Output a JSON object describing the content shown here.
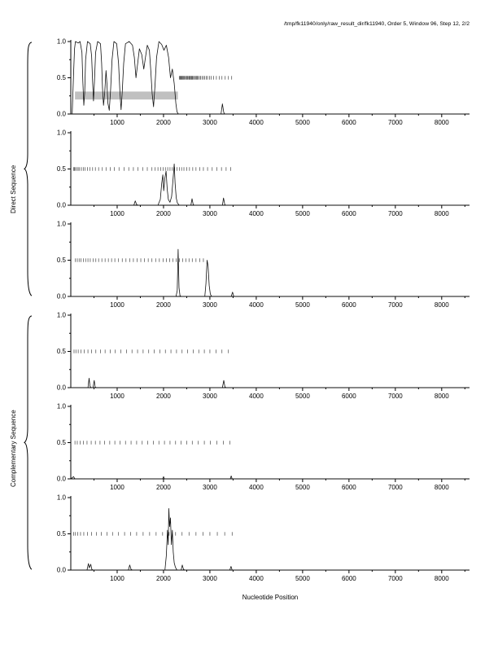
{
  "title": "/tmp/fk11940/only/raw_result_dir/fk11940, Order 5, Window 96, Step 12, 2/2",
  "xlabel": "Nucleotide Position",
  "group_labels": {
    "direct": "Direct Sequence",
    "complementary": "Complementary Sequence"
  },
  "colors": {
    "curve": "#111111",
    "axis": "#000000",
    "marker": "#444444",
    "coding_bar": "#c0c0c0"
  },
  "chart_data": {
    "type": "line",
    "title": "/tmp/fk11940/only/raw_result_dir/fk11940, Order 5, Window 96, Step 12, 2/2",
    "xlabel": "Nucleotide Position",
    "ylabel_groups": [
      "Direct Sequence",
      "Complementary Sequence"
    ],
    "xlim": [
      0,
      8600
    ],
    "ylim": [
      0,
      1
    ],
    "x_ticks": [
      1000,
      2000,
      3000,
      4000,
      5000,
      6000,
      7000,
      8000
    ],
    "x_minor_step": 500,
    "y_ticks": [
      0.0,
      0.5,
      1.0
    ],
    "y_minor_ticks": [
      0.25,
      0.75
    ],
    "grid": false,
    "legend": "none",
    "panels": [
      {
        "name": "direct-frame-1",
        "coding_bar": {
          "x0": 90,
          "x1": 2310,
          "y0": 0.2,
          "y1": 0.31
        },
        "curve": [
          [
            30,
            0.0
          ],
          [
            60,
            0.55
          ],
          [
            80,
            0.9
          ],
          [
            100,
            1.0
          ],
          [
            160,
            0.98
          ],
          [
            200,
            1.0
          ],
          [
            240,
            0.85
          ],
          [
            260,
            0.45
          ],
          [
            280,
            0.12
          ],
          [
            300,
            0.3
          ],
          [
            320,
            0.75
          ],
          [
            360,
            1.0
          ],
          [
            420,
            0.97
          ],
          [
            450,
            0.8
          ],
          [
            470,
            0.45
          ],
          [
            490,
            0.18
          ],
          [
            510,
            0.45
          ],
          [
            535,
            0.85
          ],
          [
            580,
            1.0
          ],
          [
            640,
            0.97
          ],
          [
            665,
            0.7
          ],
          [
            685,
            0.35
          ],
          [
            705,
            0.12
          ],
          [
            730,
            0.28
          ],
          [
            760,
            0.6
          ],
          [
            780,
            0.42
          ],
          [
            800,
            0.15
          ],
          [
            830,
            0.05
          ],
          [
            860,
            0.35
          ],
          [
            890,
            0.75
          ],
          [
            930,
            1.0
          ],
          [
            990,
            0.97
          ],
          [
            1030,
            0.7
          ],
          [
            1060,
            0.3
          ],
          [
            1085,
            0.06
          ],
          [
            1110,
            0.3
          ],
          [
            1140,
            0.7
          ],
          [
            1180,
            0.97
          ],
          [
            1260,
            1.0
          ],
          [
            1330,
            0.95
          ],
          [
            1370,
            0.78
          ],
          [
            1405,
            0.5
          ],
          [
            1440,
            0.68
          ],
          [
            1480,
            0.9
          ],
          [
            1530,
            0.82
          ],
          [
            1575,
            0.62
          ],
          [
            1615,
            0.8
          ],
          [
            1650,
            0.95
          ],
          [
            1695,
            0.88
          ],
          [
            1725,
            0.6
          ],
          [
            1755,
            0.28
          ],
          [
            1785,
            0.1
          ],
          [
            1815,
            0.38
          ],
          [
            1850,
            0.78
          ],
          [
            1900,
            1.0
          ],
          [
            1960,
            0.96
          ],
          [
            2010,
            0.88
          ],
          [
            2060,
            0.95
          ],
          [
            2110,
            0.78
          ],
          [
            2150,
            0.5
          ],
          [
            2190,
            0.62
          ],
          [
            2230,
            0.42
          ],
          [
            2265,
            0.15
          ],
          [
            2290,
            0.03
          ],
          [
            2320,
            0.0
          ],
          [
            2600,
            0.0
          ],
          [
            3240,
            0.0
          ],
          [
            3270,
            0.14
          ],
          [
            3300,
            0.02
          ],
          [
            3320,
            0.0
          ],
          [
            8500,
            0.0
          ]
        ],
        "markers": [
          2340,
          2355,
          2370,
          2385,
          2400,
          2415,
          2430,
          2445,
          2460,
          2480,
          2500,
          2515,
          2530,
          2550,
          2565,
          2580,
          2600,
          2615,
          2630,
          2650,
          2670,
          2690,
          2710,
          2730,
          2750,
          2775,
          2800,
          2830,
          2860,
          2890,
          2920,
          2950,
          2990,
          3030,
          3080,
          3140,
          3200,
          3260,
          3330,
          3400,
          3470
        ]
      },
      {
        "name": "direct-frame-2",
        "coding_bar": null,
        "curve": [
          [
            0,
            0.0
          ],
          [
            1360,
            0.0
          ],
          [
            1390,
            0.06
          ],
          [
            1420,
            0.01
          ],
          [
            1450,
            0.0
          ],
          [
            1880,
            0.0
          ],
          [
            1930,
            0.08
          ],
          [
            1960,
            0.3
          ],
          [
            1985,
            0.42
          ],
          [
            2005,
            0.2
          ],
          [
            2030,
            0.38
          ],
          [
            2055,
            0.47
          ],
          [
            2080,
            0.22
          ],
          [
            2105,
            0.08
          ],
          [
            2140,
            0.04
          ],
          [
            2175,
            0.12
          ],
          [
            2205,
            0.35
          ],
          [
            2230,
            0.57
          ],
          [
            2250,
            0.3
          ],
          [
            2275,
            0.1
          ],
          [
            2300,
            0.03
          ],
          [
            2340,
            0.0
          ],
          [
            2590,
            0.0
          ],
          [
            2615,
            0.09
          ],
          [
            2640,
            0.01
          ],
          [
            2660,
            0.0
          ],
          [
            3270,
            0.0
          ],
          [
            3295,
            0.1
          ],
          [
            3320,
            0.01
          ],
          [
            3340,
            0.0
          ],
          [
            8500,
            0.0
          ]
        ],
        "markers": [
          60,
          80,
          100,
          130,
          160,
          190,
          230,
          270,
          310,
          360,
          410,
          470,
          530,
          600,
          680,
          760,
          850,
          940,
          1040,
          1150,
          1250,
          1350,
          1450,
          1550,
          1650,
          1750,
          1820,
          1880,
          1940,
          1990,
          2040,
          2090,
          2140,
          2190,
          2240,
          2290,
          2340,
          2390,
          2440,
          2500,
          2560,
          2630,
          2700,
          2780,
          2860,
          2950,
          3050,
          3150,
          3250,
          3350,
          3450
        ]
      },
      {
        "name": "direct-frame-3",
        "coding_bar": null,
        "curve": [
          [
            0,
            0.0
          ],
          [
            2270,
            0.0
          ],
          [
            2295,
            0.08
          ],
          [
            2315,
            0.65
          ],
          [
            2335,
            0.12
          ],
          [
            2355,
            0.01
          ],
          [
            2380,
            0.0
          ],
          [
            2890,
            0.0
          ],
          [
            2915,
            0.18
          ],
          [
            2940,
            0.5
          ],
          [
            2960,
            0.42
          ],
          [
            2985,
            0.15
          ],
          [
            3010,
            0.03
          ],
          [
            3040,
            0.0
          ],
          [
            3460,
            0.0
          ],
          [
            3490,
            0.06
          ],
          [
            3515,
            0.0
          ],
          [
            8500,
            0.0
          ]
        ],
        "markers": [
          100,
          140,
          180,
          220,
          270,
          320,
          370,
          420,
          480,
          540,
          600,
          670,
          740,
          810,
          880,
          950,
          1030,
          1110,
          1190,
          1270,
          1350,
          1430,
          1510,
          1590,
          1670,
          1750,
          1830,
          1910,
          1990,
          2060,
          2130,
          2200,
          2270,
          2340,
          2410,
          2480,
          2550,
          2620,
          2700,
          2780,
          2860
        ]
      },
      {
        "name": "complementary-frame-1",
        "coding_bar": null,
        "curve": [
          [
            0,
            0.0
          ],
          [
            370,
            0.0
          ],
          [
            395,
            0.13
          ],
          [
            415,
            0.02
          ],
          [
            440,
            0.0
          ],
          [
            480,
            0.0
          ],
          [
            505,
            0.1
          ],
          [
            525,
            0.01
          ],
          [
            550,
            0.0
          ],
          [
            3270,
            0.0
          ],
          [
            3300,
            0.1
          ],
          [
            3325,
            0.01
          ],
          [
            3350,
            0.0
          ],
          [
            8500,
            0.0
          ]
        ],
        "markers": [
          70,
          110,
          160,
          220,
          290,
          370,
          450,
          540,
          640,
          740,
          850,
          960,
          1080,
          1200,
          1320,
          1440,
          1560,
          1680,
          1800,
          1920,
          2040,
          2160,
          2280,
          2400,
          2520,
          2640,
          2760,
          2880,
          3000,
          3130,
          3260,
          3400
        ]
      },
      {
        "name": "complementary-frame-2",
        "coding_bar": null,
        "curve": [
          [
            0,
            0.0
          ],
          [
            60,
            0.03
          ],
          [
            90,
            0.0
          ],
          [
            1980,
            0.0
          ],
          [
            2000,
            0.03
          ],
          [
            2020,
            0.0
          ],
          [
            3440,
            0.0
          ],
          [
            3460,
            0.04
          ],
          [
            3480,
            0.0
          ],
          [
            8500,
            0.0
          ]
        ],
        "markers": [
          90,
          140,
          200,
          270,
          350,
          440,
          530,
          630,
          730,
          840,
          950,
          1060,
          1180,
          1300,
          1420,
          1540,
          1660,
          1780,
          1900,
          2020,
          2140,
          2260,
          2380,
          2500,
          2620,
          2750,
          2880,
          3010,
          3150,
          3290,
          3430
        ]
      },
      {
        "name": "complementary-frame-3",
        "coding_bar": null,
        "curve": [
          [
            0,
            0.0
          ],
          [
            350,
            0.0
          ],
          [
            380,
            0.09
          ],
          [
            400,
            0.03
          ],
          [
            430,
            0.08
          ],
          [
            455,
            0.01
          ],
          [
            480,
            0.0
          ],
          [
            1240,
            0.0
          ],
          [
            1270,
            0.07
          ],
          [
            1300,
            0.01
          ],
          [
            1330,
            0.0
          ],
          [
            2030,
            0.0
          ],
          [
            2060,
            0.2
          ],
          [
            2085,
            0.55
          ],
          [
            2100,
            0.35
          ],
          [
            2115,
            0.85
          ],
          [
            2130,
            0.6
          ],
          [
            2150,
            0.72
          ],
          [
            2170,
            0.35
          ],
          [
            2190,
            0.55
          ],
          [
            2210,
            0.25
          ],
          [
            2230,
            0.1
          ],
          [
            2255,
            0.04
          ],
          [
            2290,
            0.0
          ],
          [
            2380,
            0.0
          ],
          [
            2405,
            0.07
          ],
          [
            2430,
            0.01
          ],
          [
            2460,
            0.0
          ],
          [
            3430,
            0.0
          ],
          [
            3455,
            0.05
          ],
          [
            3480,
            0.0
          ],
          [
            8500,
            0.0
          ]
        ],
        "markers": [
          60,
          100,
          150,
          210,
          280,
          360,
          450,
          550,
          660,
          780,
          900,
          1030,
          1160,
          1290,
          1420,
          1560,
          1700,
          1840,
          1980,
          2120,
          2260,
          2400,
          2550,
          2700,
          2850,
          3000,
          3160,
          3320,
          3480
        ]
      }
    ]
  }
}
